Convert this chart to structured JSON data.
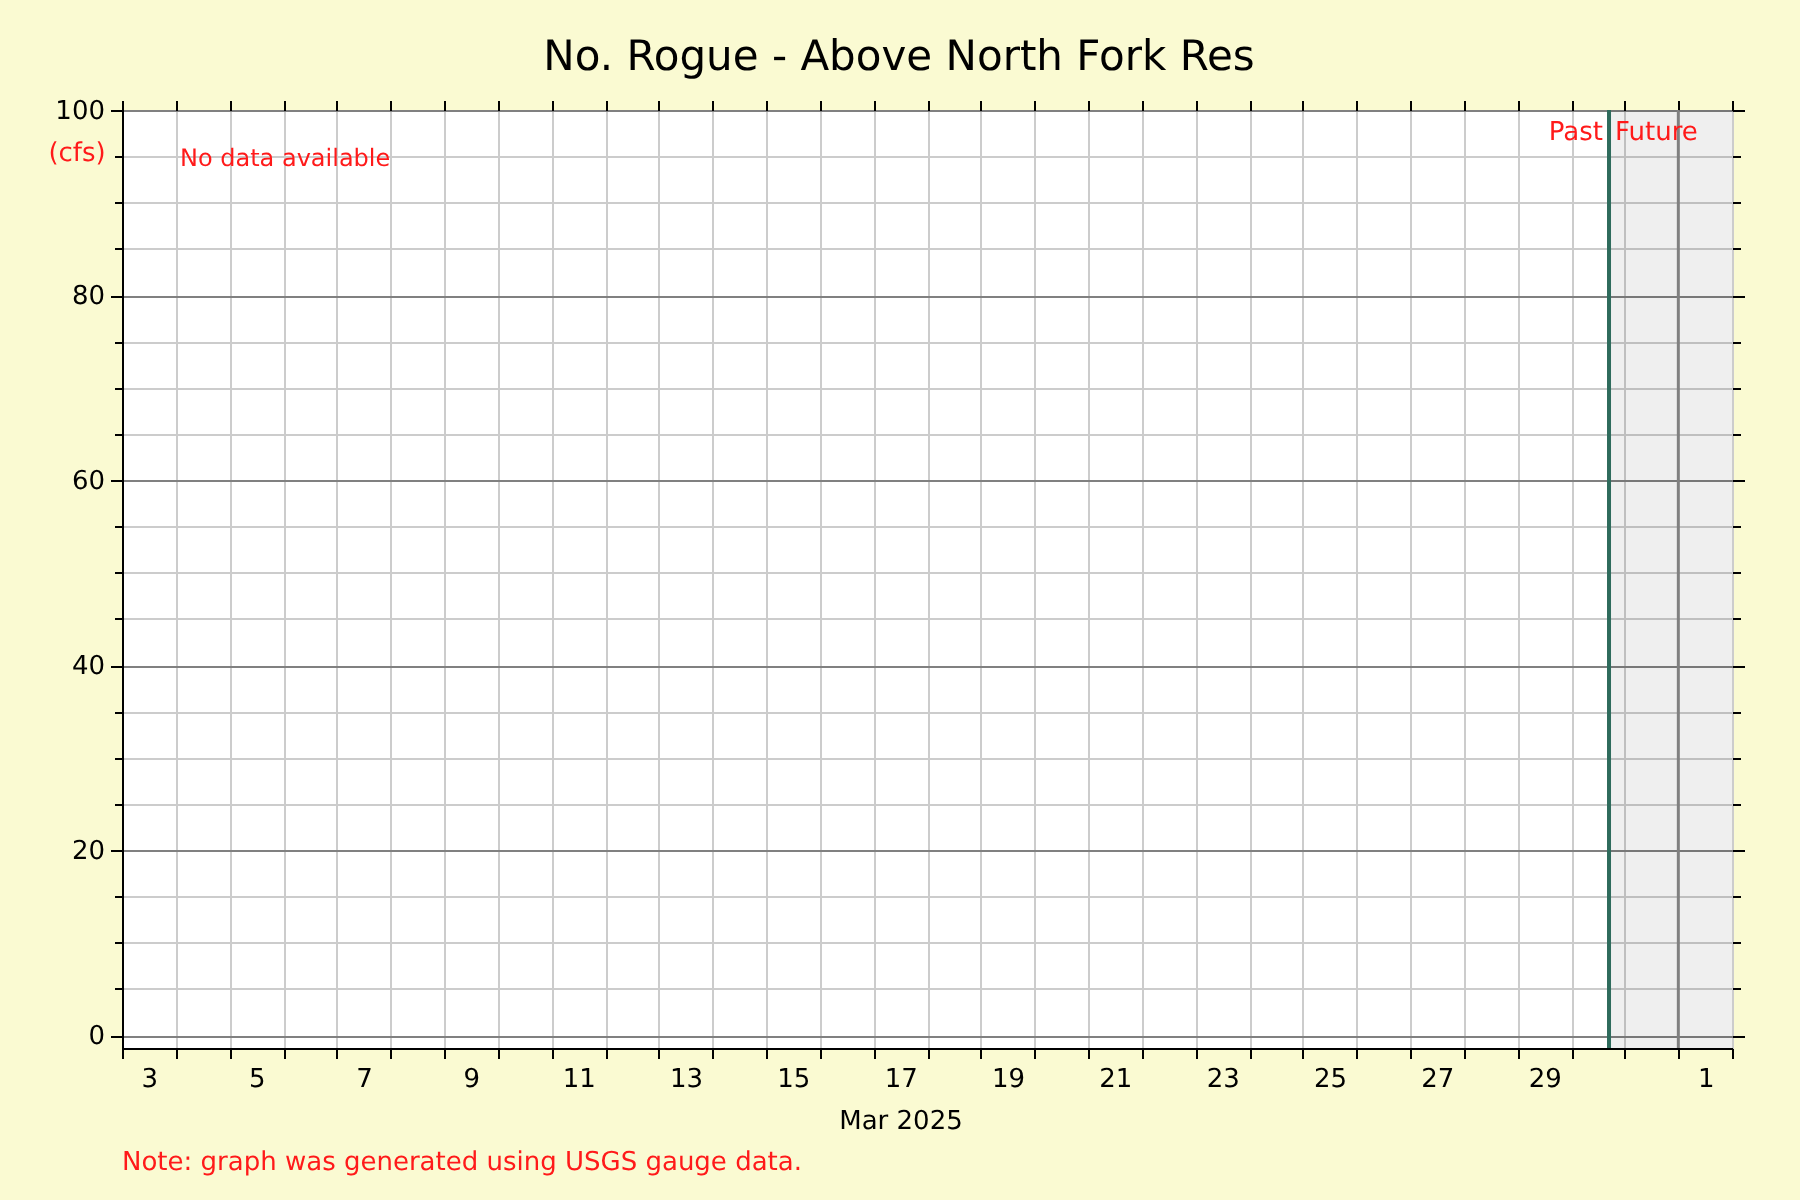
{
  "chart_data": {
    "type": "line",
    "title": "No. Rogue - Above North Fork Res",
    "ylabel": "(cfs)",
    "xlabel": "Mar 2025",
    "xlim": [
      "2025-03-03",
      "2025-04-02"
    ],
    "xticks": [
      {
        "value": "2025-03-03",
        "label": null
      },
      {
        "value": "2025-03-03T12:00",
        "label": "3"
      },
      {
        "value": "2025-03-04",
        "label": null
      },
      {
        "value": "2025-03-05",
        "label": null
      },
      {
        "value": "2025-03-05T12:00",
        "label": "5"
      },
      {
        "value": "2025-03-06",
        "label": null
      },
      {
        "value": "2025-03-07",
        "label": null
      },
      {
        "value": "2025-03-07T12:00",
        "label": "7"
      },
      {
        "value": "2025-03-08",
        "label": null
      },
      {
        "value": "2025-03-09",
        "label": null
      },
      {
        "value": "2025-03-09T12:00",
        "label": "9"
      },
      {
        "value": "2025-03-10",
        "label": null
      },
      {
        "value": "2025-03-11",
        "label": null
      },
      {
        "value": "2025-03-11T12:00",
        "label": "11"
      },
      {
        "value": "2025-03-12",
        "label": null
      },
      {
        "value": "2025-03-13",
        "label": null
      },
      {
        "value": "2025-03-13T12:00",
        "label": "13"
      },
      {
        "value": "2025-03-14",
        "label": null
      },
      {
        "value": "2025-03-15",
        "label": null
      },
      {
        "value": "2025-03-15T12:00",
        "label": "15"
      },
      {
        "value": "2025-03-16",
        "label": null
      },
      {
        "value": "2025-03-17",
        "label": null
      },
      {
        "value": "2025-03-17T12:00",
        "label": "17"
      },
      {
        "value": "2025-03-18",
        "label": null
      },
      {
        "value": "2025-03-19",
        "label": null
      },
      {
        "value": "2025-03-19T12:00",
        "label": "19"
      },
      {
        "value": "2025-03-20",
        "label": null
      },
      {
        "value": "2025-03-21",
        "label": null
      },
      {
        "value": "2025-03-21T12:00",
        "label": "21"
      },
      {
        "value": "2025-03-22",
        "label": null
      },
      {
        "value": "2025-03-23",
        "label": null
      },
      {
        "value": "2025-03-23T12:00",
        "label": "23"
      },
      {
        "value": "2025-03-24",
        "label": null
      },
      {
        "value": "2025-03-25",
        "label": null
      },
      {
        "value": "2025-03-25T12:00",
        "label": "25"
      },
      {
        "value": "2025-03-26",
        "label": null
      },
      {
        "value": "2025-03-27",
        "label": null
      },
      {
        "value": "2025-03-27T12:00",
        "label": "27"
      },
      {
        "value": "2025-03-28",
        "label": null
      },
      {
        "value": "2025-03-29",
        "label": null
      },
      {
        "value": "2025-03-29T12:00",
        "label": "29"
      },
      {
        "value": "2025-03-30",
        "label": null
      },
      {
        "value": "2025-03-31",
        "label": null
      },
      {
        "value": "2025-04-01",
        "label": null
      },
      {
        "value": "2025-04-01T12:00",
        "label": "1"
      },
      {
        "value": "2025-04-02",
        "label": null
      }
    ],
    "ylim": [
      -1.4,
      100
    ],
    "yticks": [
      0,
      {
        "value": 5,
        "label": null
      },
      {
        "value": 10,
        "label": null
      },
      {
        "value": 15,
        "label": null
      },
      20,
      {
        "value": 25,
        "label": null
      },
      {
        "value": 30,
        "label": null
      },
      {
        "value": 35,
        "label": null
      },
      40,
      {
        "value": 45,
        "label": null
      },
      {
        "value": 50,
        "label": null
      },
      {
        "value": 55,
        "label": null
      },
      60,
      {
        "value": 65,
        "label": null
      },
      {
        "value": 70,
        "label": null
      },
      {
        "value": 75,
        "label": null
      },
      80,
      {
        "value": 85,
        "label": null
      },
      {
        "value": 90,
        "label": null
      },
      {
        "value": 95,
        "label": null
      },
      100
    ],
    "grid": true,
    "ref_lines": [
      {
        "axis": "x",
        "value": "2025-03-30T17:00",
        "label": "Past",
        "color": "#2e6b5c"
      },
      {
        "axis": "x",
        "value": "2025-04-01",
        "color": "#808080"
      }
    ],
    "bands": [
      {
        "axis": "x",
        "from": "2025-03-30T17:00",
        "to": "2025-04-02",
        "label": "Future",
        "color": "#efefef"
      }
    ],
    "annotations": [
      "No data available",
      "Note: graph was generated using USGS gauge data."
    ]
  }
}
